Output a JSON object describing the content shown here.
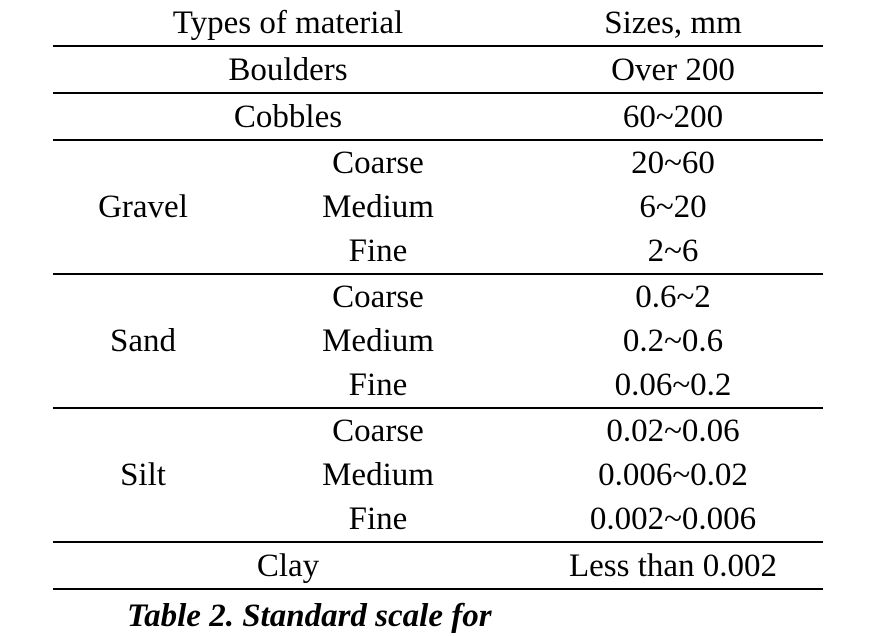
{
  "table": {
    "headers": {
      "type": "Types of material",
      "size": "Sizes, mm"
    },
    "boulders": {
      "label": "Boulders",
      "size": "Over 200"
    },
    "cobbles": {
      "label": "Cobbles",
      "size": "60~200"
    },
    "gravel": {
      "label": "Gravel",
      "rows": [
        {
          "sub": "Coarse",
          "size": "20~60"
        },
        {
          "sub": "Medium",
          "size": "6~20"
        },
        {
          "sub": "Fine",
          "size": "2~6"
        }
      ]
    },
    "sand": {
      "label": "Sand",
      "rows": [
        {
          "sub": "Coarse",
          "size": "0.6~2"
        },
        {
          "sub": "Medium",
          "size": "0.2~0.6"
        },
        {
          "sub": "Fine",
          "size": "0.06~0.2"
        }
      ]
    },
    "silt": {
      "label": "Silt",
      "rows": [
        {
          "sub": "Coarse",
          "size": "0.02~0.06"
        },
        {
          "sub": "Medium",
          "size": "0.006~0.02"
        },
        {
          "sub": "Fine",
          "size": "0.002~0.006"
        }
      ]
    },
    "clay": {
      "label": "Clay",
      "size": "Less than 0.002"
    }
  },
  "caption": "Table 2. Standard scale for"
}
